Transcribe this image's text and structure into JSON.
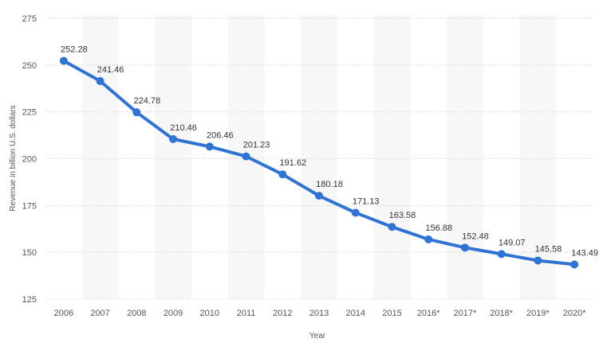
{
  "chart_data": {
    "type": "line",
    "title": "",
    "xlabel": "Year",
    "ylabel": "Revenue in billion U.S. dollars",
    "categories": [
      "2006",
      "2007",
      "2008",
      "2009",
      "2010",
      "2011",
      "2012",
      "2013",
      "2014",
      "2015",
      "2016*",
      "2017*",
      "2018*",
      "2019*",
      "2020*"
    ],
    "series": [
      {
        "values": [
          252.28,
          241.46,
          224.78,
          210.46,
          206.46,
          201.23,
          191.62,
          180.18,
          171.13,
          163.58,
          156.88,
          152.48,
          149.07,
          145.58,
          143.49
        ],
        "color": "#2f73d5"
      }
    ],
    "ylim": [
      125,
      275
    ],
    "yticks": [
      "125",
      "150",
      "175",
      "200",
      "225",
      "250",
      "275"
    ],
    "data_labels": [
      "252.28",
      "241.46",
      "224.78",
      "210.46",
      "206.46",
      "201.23",
      "191.62",
      "180.18",
      "171.13",
      "163.58",
      "156.88",
      "152.48",
      "149.07",
      "145.58",
      "143.49"
    ],
    "grid": true,
    "legend": "none",
    "colors": {
      "line": "#2f73d5",
      "band": "#f7f7f7",
      "grid": "#cccccc"
    }
  }
}
